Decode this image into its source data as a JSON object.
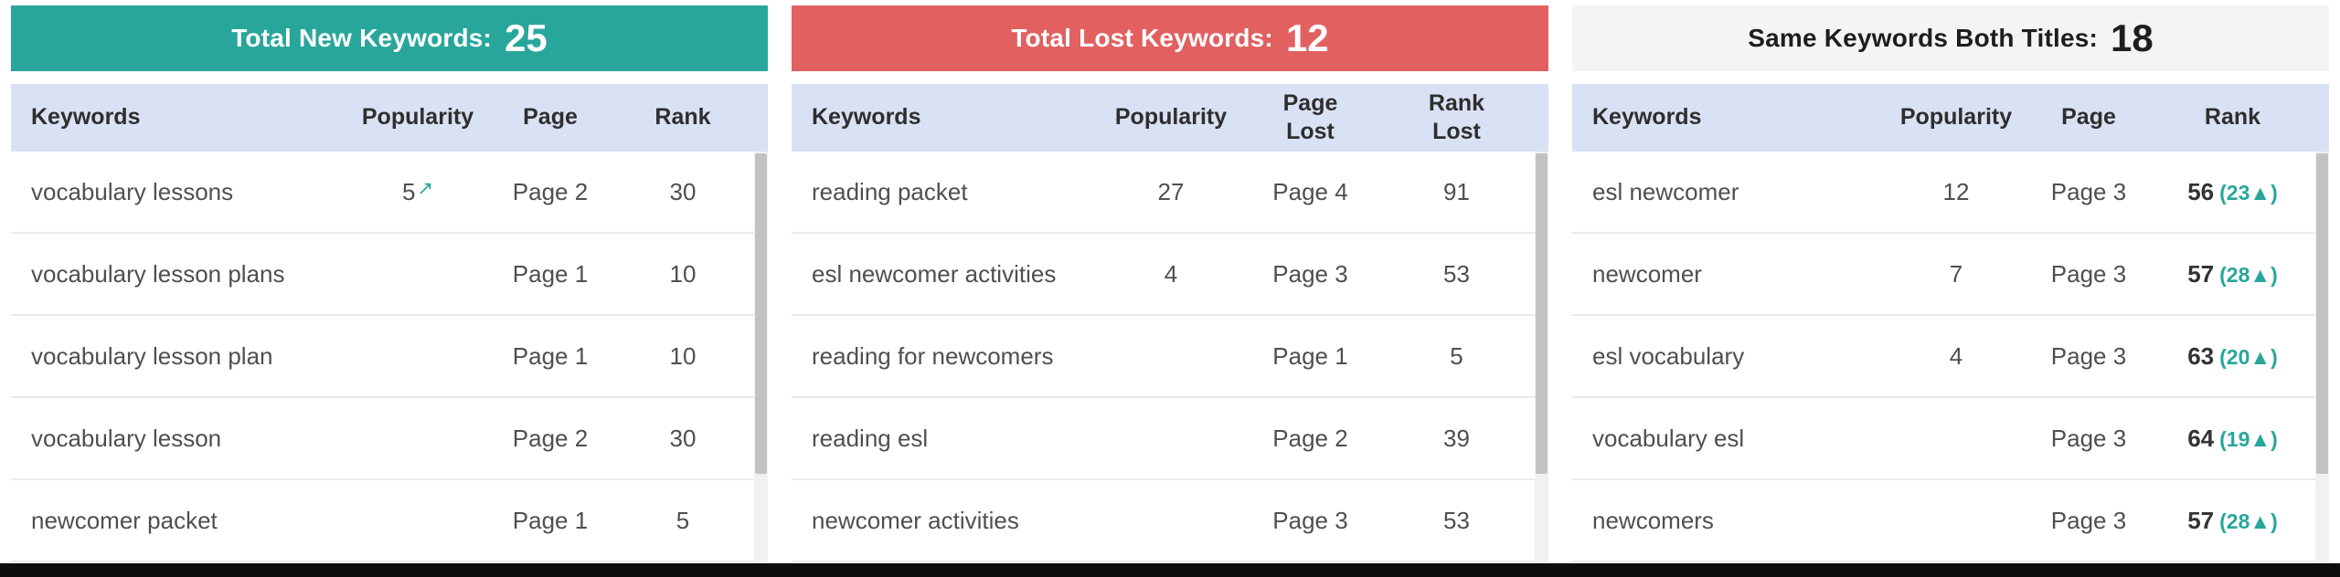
{
  "colors": {
    "new_header_bg": "#29a69b",
    "lost_header_bg": "#e26060",
    "same_header_bg": "#f4f4f4",
    "table_header_bg": "#d9e1f4",
    "gain_accent": "#29a69b"
  },
  "panels": [
    {
      "title": "Total New Keywords:",
      "count": "25",
      "columns": [
        "Keywords",
        "Popularity",
        "Page",
        "Rank"
      ],
      "rows": [
        {
          "keyword": "vocabulary lessons",
          "popularity": "5",
          "trend": "↗",
          "page": "Page 2",
          "rank": "30"
        },
        {
          "keyword": "vocabulary lesson plans",
          "popularity": "",
          "trend": "",
          "page": "Page 1",
          "rank": "10"
        },
        {
          "keyword": "vocabulary lesson plan",
          "popularity": "",
          "trend": "",
          "page": "Page 1",
          "rank": "10"
        },
        {
          "keyword": "vocabulary lesson",
          "popularity": "",
          "trend": "",
          "page": "Page 2",
          "rank": "30"
        },
        {
          "keyword": "newcomer packet",
          "popularity": "",
          "trend": "",
          "page": "Page 1",
          "rank": "5"
        }
      ]
    },
    {
      "title": "Total Lost Keywords:",
      "count": "12",
      "columns": [
        "Keywords",
        "Popularity",
        "Page Lost",
        "Rank Lost"
      ],
      "rows": [
        {
          "keyword": "reading packet",
          "popularity": "27",
          "page": "Page 4",
          "rank": "91"
        },
        {
          "keyword": "esl newcomer activities",
          "popularity": "4",
          "page": "Page 3",
          "rank": "53"
        },
        {
          "keyword": "reading for newcomers",
          "popularity": "",
          "page": "Page 1",
          "rank": "5"
        },
        {
          "keyword": "reading esl",
          "popularity": "",
          "page": "Page 2",
          "rank": "39"
        },
        {
          "keyword": "newcomer activities",
          "popularity": "",
          "page": "Page 3",
          "rank": "53"
        }
      ]
    },
    {
      "title": "Same Keywords Both Titles:",
      "count": "18",
      "columns": [
        "Keywords",
        "Popularity",
        "Page",
        "Rank"
      ],
      "rows": [
        {
          "keyword": "esl newcomer",
          "popularity": "12",
          "page": "Page 3",
          "rank": "56",
          "change": "(23▲)"
        },
        {
          "keyword": "newcomer",
          "popularity": "7",
          "page": "Page 3",
          "rank": "57",
          "change": "(28▲)"
        },
        {
          "keyword": "esl vocabulary",
          "popularity": "4",
          "page": "Page 3",
          "rank": "63",
          "change": "(20▲)"
        },
        {
          "keyword": "vocabulary esl",
          "popularity": "",
          "page": "Page 3",
          "rank": "64",
          "change": "(19▲)"
        },
        {
          "keyword": "newcomers",
          "popularity": "",
          "page": "Page 3",
          "rank": "57",
          "change": "(28▲)"
        }
      ]
    }
  ],
  "chart_data": [
    {
      "type": "table",
      "title": "Total New Keywords: 25",
      "columns": [
        "Keywords",
        "Popularity",
        "Page",
        "Rank"
      ],
      "rows": [
        [
          "vocabulary lessons",
          "5↗",
          "Page 2",
          "30"
        ],
        [
          "vocabulary lesson plans",
          "",
          "Page 1",
          "10"
        ],
        [
          "vocabulary lesson plan",
          "",
          "Page 1",
          "10"
        ],
        [
          "vocabulary lesson",
          "",
          "Page 2",
          "30"
        ],
        [
          "newcomer packet",
          "",
          "Page 1",
          "5"
        ]
      ]
    },
    {
      "type": "table",
      "title": "Total Lost Keywords: 12",
      "columns": [
        "Keywords",
        "Popularity",
        "Page Lost",
        "Rank Lost"
      ],
      "rows": [
        [
          "reading packet",
          "27",
          "Page 4",
          "91"
        ],
        [
          "esl newcomer activities",
          "4",
          "Page 3",
          "53"
        ],
        [
          "reading for newcomers",
          "",
          "Page 1",
          "5"
        ],
        [
          "reading esl",
          "",
          "Page 2",
          "39"
        ],
        [
          "newcomer activities",
          "",
          "Page 3",
          "53"
        ]
      ]
    },
    {
      "type": "table",
      "title": "Same Keywords Both Titles: 18",
      "columns": [
        "Keywords",
        "Popularity",
        "Page",
        "Rank"
      ],
      "rows": [
        [
          "esl newcomer",
          "12",
          "Page 3",
          "56 (23▲)"
        ],
        [
          "newcomer",
          "7",
          "Page 3",
          "57 (28▲)"
        ],
        [
          "esl vocabulary",
          "4",
          "Page 3",
          "63 (20▲)"
        ],
        [
          "vocabulary esl",
          "",
          "Page 3",
          "64 (19▲)"
        ],
        [
          "newcomers",
          "",
          "Page 3",
          "57 (28▲)"
        ]
      ]
    }
  ]
}
